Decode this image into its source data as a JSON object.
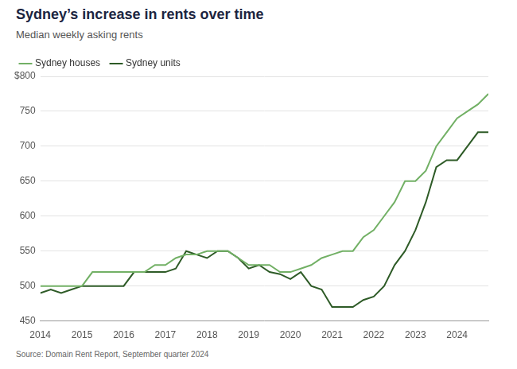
{
  "chart_data": {
    "type": "line",
    "title": "Sydney’s increase in rents over time",
    "subtitle": "Median weekly asking rents",
    "source": "Source: Domain Rent Report, September quarter 2024",
    "x": [
      2014,
      2014.25,
      2014.5,
      2014.75,
      2015,
      2015.25,
      2015.5,
      2015.75,
      2016,
      2016.25,
      2016.5,
      2016.75,
      2017,
      2017.25,
      2017.5,
      2017.75,
      2018,
      2018.25,
      2018.5,
      2018.75,
      2019,
      2019.25,
      2019.5,
      2019.75,
      2020,
      2020.25,
      2020.5,
      2020.75,
      2021,
      2021.25,
      2021.5,
      2021.75,
      2022,
      2022.25,
      2022.5,
      2022.75,
      2023,
      2023.25,
      2023.5,
      2023.75,
      2024,
      2024.25,
      2024.5,
      2024.75
    ],
    "series": [
      {
        "name": "Sydney houses",
        "color": "#72b065",
        "values": [
          500,
          500,
          500,
          500,
          500,
          520,
          520,
          520,
          520,
          520,
          520,
          530,
          530,
          540,
          545,
          545,
          550,
          550,
          550,
          540,
          530,
          530,
          530,
          520,
          520,
          525,
          530,
          540,
          545,
          550,
          550,
          570,
          580,
          600,
          620,
          650,
          650,
          665,
          700,
          720,
          740,
          750,
          760,
          775
        ]
      },
      {
        "name": "Sydney units",
        "color": "#2e5b27",
        "values": [
          490,
          495,
          490,
          495,
          500,
          500,
          500,
          500,
          500,
          520,
          520,
          520,
          520,
          525,
          550,
          545,
          540,
          550,
          550,
          540,
          525,
          530,
          520,
          517,
          510,
          520,
          500,
          495,
          470,
          470,
          470,
          480,
          485,
          500,
          530,
          550,
          580,
          620,
          670,
          680,
          680,
          700,
          720,
          720
        ]
      }
    ],
    "xlim": [
      2014,
      2024.75
    ],
    "xticks": [
      2014,
      2015,
      2016,
      2017,
      2018,
      2019,
      2020,
      2021,
      2022,
      2023,
      2024
    ],
    "ylim": [
      450,
      800
    ],
    "yticks": [
      450,
      500,
      550,
      600,
      650,
      700,
      750,
      {
        "value": 800,
        "label": "$800"
      }
    ],
    "grid": true,
    "legend": "top-left"
  }
}
